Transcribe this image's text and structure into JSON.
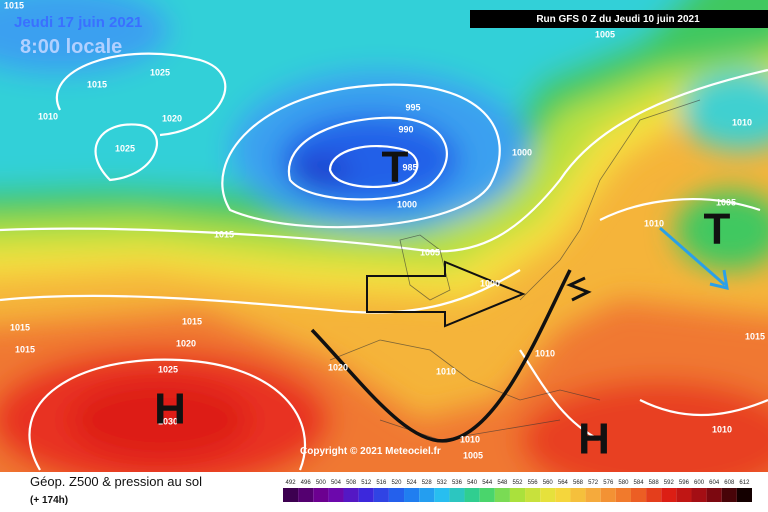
{
  "header": {
    "valid_date": "Jeudi 17 juin 2021",
    "local_time": "8:00 locale",
    "run": "Run GFS 0 Z du Jeudi 10 juin 2021"
  },
  "copyright": "Copyright © 2021 Meteociel.fr",
  "legend": {
    "title": "Géop. Z500 & pression au sol",
    "lead_time": "(+ 174h)",
    "scale": [
      492,
      496,
      500,
      504,
      508,
      512,
      516,
      520,
      524,
      528,
      532,
      536,
      540,
      544,
      548,
      552,
      556,
      560,
      564,
      568,
      572,
      576,
      580,
      584,
      588,
      592,
      596,
      600,
      604,
      608,
      612
    ]
  },
  "isobar_labels": [
    "1015",
    "1025",
    "1015",
    "1010",
    "1020",
    "1025",
    "995",
    "990",
    "985",
    "1000",
    "1000",
    "1015",
    "1005",
    "1000",
    "1015",
    "1015",
    "1015",
    "1020",
    "1025",
    "1020",
    "1010",
    "1010",
    "1010",
    "1005",
    "1005",
    "1010",
    "1010",
    "1015",
    "1010",
    "1005",
    "1030"
  ],
  "pressure_centers": [
    "T",
    "T",
    "H",
    "H"
  ]
}
